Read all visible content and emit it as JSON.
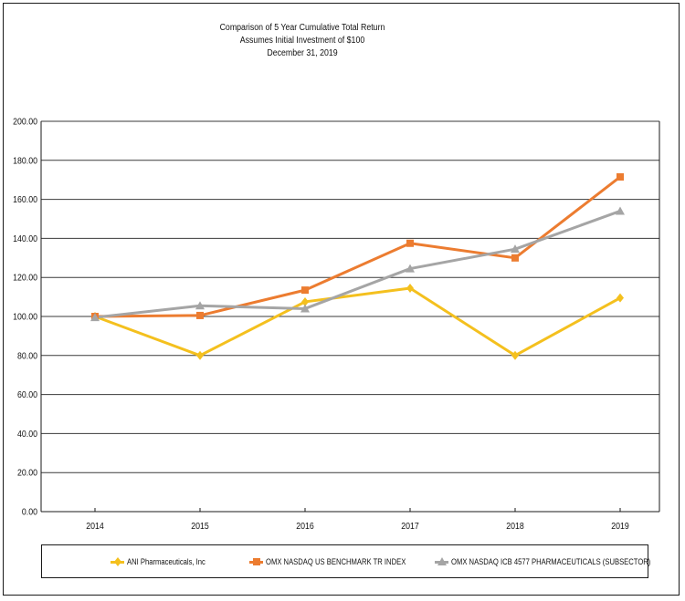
{
  "chart_data": {
    "type": "line",
    "title_lines": [
      "Comparison of 5 Year Cumulative Total Return",
      "Assumes Initial Investment of $100",
      "December 31, 2019"
    ],
    "categories": [
      "2014",
      "2015",
      "2016",
      "2017",
      "2018",
      "2019"
    ],
    "ylim": [
      0,
      200
    ],
    "yticks": [
      "0.00",
      "20.00",
      "40.00",
      "60.00",
      "80.00",
      "100.00",
      "120.00",
      "140.00",
      "160.00",
      "180.00",
      "200.00"
    ],
    "grid": true,
    "legend_position": "bottom",
    "series": [
      {
        "name": "ANI Pharmaceuticals, Inc",
        "color": "#f4c01e",
        "marker": "diamond",
        "values": [
          100.0,
          80.0,
          107.5,
          114.5,
          80.0,
          109.5
        ]
      },
      {
        "name": "OMX NASDAQ US BENCHMARK TR INDEX",
        "color": "#ec7c30",
        "marker": "square",
        "values": [
          100.0,
          100.5,
          113.5,
          137.5,
          130.0,
          171.5
        ]
      },
      {
        "name": "OMX NASDAQ ICB 4577 PHARMACEUTICALS (SUBSECTOR)",
        "color": "#a5a5a5",
        "marker": "triangle",
        "values": [
          99.5,
          105.5,
          104.0,
          124.5,
          134.5,
          154.0
        ]
      }
    ]
  }
}
